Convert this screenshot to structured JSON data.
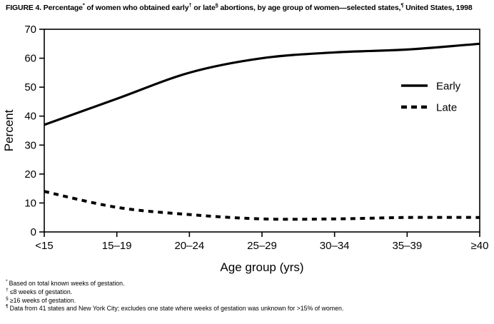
{
  "figure": {
    "title_segments": [
      {
        "text": "FIGURE 4. Percentage",
        "sup": false
      },
      {
        "text": "*",
        "sup": true
      },
      {
        "text": " of women who obtained early",
        "sup": false
      },
      {
        "text": "†",
        "sup": true
      },
      {
        "text": " or late",
        "sup": false
      },
      {
        "text": "§",
        "sup": true
      },
      {
        "text": " abortions, by age group of women—selected states,",
        "sup": false
      },
      {
        "text": "¶",
        "sup": true
      },
      {
        "text": " United States, 1998",
        "sup": false
      }
    ],
    "footnotes": [
      {
        "marker": "*",
        "text": "Based on total known weeks of gestation."
      },
      {
        "marker": "†",
        "text": "≤8 weeks of gestation."
      },
      {
        "marker": "§",
        "text": "≥16 weeks of gestation."
      },
      {
        "marker": "¶",
        "text": "Data from 41 states and New York City; excludes one state where weeks of gestation was unknown for >15% of women."
      }
    ]
  },
  "chart_data": {
    "type": "line",
    "categories": [
      "<15",
      "15–19",
      "20–24",
      "25–29",
      "30–34",
      "35–39",
      "≥40"
    ],
    "series": [
      {
        "name": "Early",
        "line_style": "solid",
        "values": [
          37,
          46,
          55,
          60,
          62,
          63,
          65
        ]
      },
      {
        "name": "Late",
        "line_style": "dashed",
        "values": [
          14,
          8.5,
          6,
          4.5,
          4.5,
          5,
          5
        ]
      }
    ],
    "xlabel": "Age group (yrs)",
    "ylabel": "Percent",
    "ylim": [
      0,
      70
    ],
    "yticks": [
      0,
      10,
      20,
      30,
      40,
      50,
      60,
      70
    ],
    "grid": false,
    "legend_position": "inside-right",
    "line_color": "#000000",
    "background": "#ffffff"
  }
}
